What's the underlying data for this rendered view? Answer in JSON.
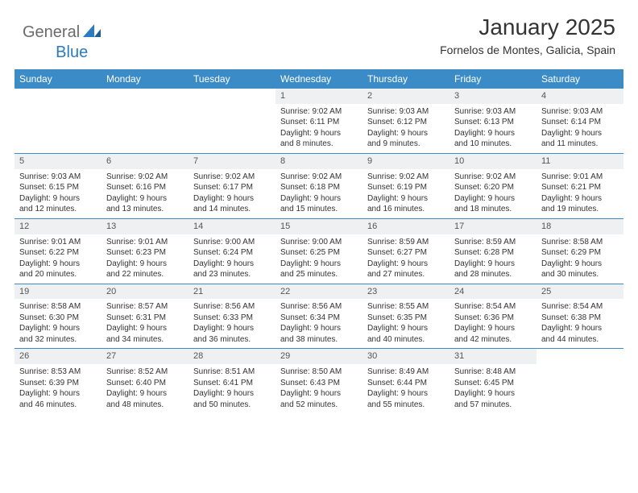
{
  "brand": {
    "part1": "General",
    "part2": "Blue"
  },
  "title": "January 2025",
  "location": "Fornelos de Montes, Galicia, Spain",
  "colors": {
    "header_bg": "#3b8bc7",
    "header_text": "#ffffff",
    "daynum_bg": "#eef0f2",
    "border": "#3b8bc7",
    "brand_gray": "#6b6b6b",
    "brand_blue": "#2a7bbf"
  },
  "weekdays": [
    "Sunday",
    "Monday",
    "Tuesday",
    "Wednesday",
    "Thursday",
    "Friday",
    "Saturday"
  ],
  "weeks": [
    [
      null,
      null,
      null,
      {
        "n": "1",
        "sr": "Sunrise: 9:02 AM",
        "ss": "Sunset: 6:11 PM",
        "d1": "Daylight: 9 hours",
        "d2": "and 8 minutes."
      },
      {
        "n": "2",
        "sr": "Sunrise: 9:03 AM",
        "ss": "Sunset: 6:12 PM",
        "d1": "Daylight: 9 hours",
        "d2": "and 9 minutes."
      },
      {
        "n": "3",
        "sr": "Sunrise: 9:03 AM",
        "ss": "Sunset: 6:13 PM",
        "d1": "Daylight: 9 hours",
        "d2": "and 10 minutes."
      },
      {
        "n": "4",
        "sr": "Sunrise: 9:03 AM",
        "ss": "Sunset: 6:14 PM",
        "d1": "Daylight: 9 hours",
        "d2": "and 11 minutes."
      }
    ],
    [
      {
        "n": "5",
        "sr": "Sunrise: 9:03 AM",
        "ss": "Sunset: 6:15 PM",
        "d1": "Daylight: 9 hours",
        "d2": "and 12 minutes."
      },
      {
        "n": "6",
        "sr": "Sunrise: 9:02 AM",
        "ss": "Sunset: 6:16 PM",
        "d1": "Daylight: 9 hours",
        "d2": "and 13 minutes."
      },
      {
        "n": "7",
        "sr": "Sunrise: 9:02 AM",
        "ss": "Sunset: 6:17 PM",
        "d1": "Daylight: 9 hours",
        "d2": "and 14 minutes."
      },
      {
        "n": "8",
        "sr": "Sunrise: 9:02 AM",
        "ss": "Sunset: 6:18 PM",
        "d1": "Daylight: 9 hours",
        "d2": "and 15 minutes."
      },
      {
        "n": "9",
        "sr": "Sunrise: 9:02 AM",
        "ss": "Sunset: 6:19 PM",
        "d1": "Daylight: 9 hours",
        "d2": "and 16 minutes."
      },
      {
        "n": "10",
        "sr": "Sunrise: 9:02 AM",
        "ss": "Sunset: 6:20 PM",
        "d1": "Daylight: 9 hours",
        "d2": "and 18 minutes."
      },
      {
        "n": "11",
        "sr": "Sunrise: 9:01 AM",
        "ss": "Sunset: 6:21 PM",
        "d1": "Daylight: 9 hours",
        "d2": "and 19 minutes."
      }
    ],
    [
      {
        "n": "12",
        "sr": "Sunrise: 9:01 AM",
        "ss": "Sunset: 6:22 PM",
        "d1": "Daylight: 9 hours",
        "d2": "and 20 minutes."
      },
      {
        "n": "13",
        "sr": "Sunrise: 9:01 AM",
        "ss": "Sunset: 6:23 PM",
        "d1": "Daylight: 9 hours",
        "d2": "and 22 minutes."
      },
      {
        "n": "14",
        "sr": "Sunrise: 9:00 AM",
        "ss": "Sunset: 6:24 PM",
        "d1": "Daylight: 9 hours",
        "d2": "and 23 minutes."
      },
      {
        "n": "15",
        "sr": "Sunrise: 9:00 AM",
        "ss": "Sunset: 6:25 PM",
        "d1": "Daylight: 9 hours",
        "d2": "and 25 minutes."
      },
      {
        "n": "16",
        "sr": "Sunrise: 8:59 AM",
        "ss": "Sunset: 6:27 PM",
        "d1": "Daylight: 9 hours",
        "d2": "and 27 minutes."
      },
      {
        "n": "17",
        "sr": "Sunrise: 8:59 AM",
        "ss": "Sunset: 6:28 PM",
        "d1": "Daylight: 9 hours",
        "d2": "and 28 minutes."
      },
      {
        "n": "18",
        "sr": "Sunrise: 8:58 AM",
        "ss": "Sunset: 6:29 PM",
        "d1": "Daylight: 9 hours",
        "d2": "and 30 minutes."
      }
    ],
    [
      {
        "n": "19",
        "sr": "Sunrise: 8:58 AM",
        "ss": "Sunset: 6:30 PM",
        "d1": "Daylight: 9 hours",
        "d2": "and 32 minutes."
      },
      {
        "n": "20",
        "sr": "Sunrise: 8:57 AM",
        "ss": "Sunset: 6:31 PM",
        "d1": "Daylight: 9 hours",
        "d2": "and 34 minutes."
      },
      {
        "n": "21",
        "sr": "Sunrise: 8:56 AM",
        "ss": "Sunset: 6:33 PM",
        "d1": "Daylight: 9 hours",
        "d2": "and 36 minutes."
      },
      {
        "n": "22",
        "sr": "Sunrise: 8:56 AM",
        "ss": "Sunset: 6:34 PM",
        "d1": "Daylight: 9 hours",
        "d2": "and 38 minutes."
      },
      {
        "n": "23",
        "sr": "Sunrise: 8:55 AM",
        "ss": "Sunset: 6:35 PM",
        "d1": "Daylight: 9 hours",
        "d2": "and 40 minutes."
      },
      {
        "n": "24",
        "sr": "Sunrise: 8:54 AM",
        "ss": "Sunset: 6:36 PM",
        "d1": "Daylight: 9 hours",
        "d2": "and 42 minutes."
      },
      {
        "n": "25",
        "sr": "Sunrise: 8:54 AM",
        "ss": "Sunset: 6:38 PM",
        "d1": "Daylight: 9 hours",
        "d2": "and 44 minutes."
      }
    ],
    [
      {
        "n": "26",
        "sr": "Sunrise: 8:53 AM",
        "ss": "Sunset: 6:39 PM",
        "d1": "Daylight: 9 hours",
        "d2": "and 46 minutes."
      },
      {
        "n": "27",
        "sr": "Sunrise: 8:52 AM",
        "ss": "Sunset: 6:40 PM",
        "d1": "Daylight: 9 hours",
        "d2": "and 48 minutes."
      },
      {
        "n": "28",
        "sr": "Sunrise: 8:51 AM",
        "ss": "Sunset: 6:41 PM",
        "d1": "Daylight: 9 hours",
        "d2": "and 50 minutes."
      },
      {
        "n": "29",
        "sr": "Sunrise: 8:50 AM",
        "ss": "Sunset: 6:43 PM",
        "d1": "Daylight: 9 hours",
        "d2": "and 52 minutes."
      },
      {
        "n": "30",
        "sr": "Sunrise: 8:49 AM",
        "ss": "Sunset: 6:44 PM",
        "d1": "Daylight: 9 hours",
        "d2": "and 55 minutes."
      },
      {
        "n": "31",
        "sr": "Sunrise: 8:48 AM",
        "ss": "Sunset: 6:45 PM",
        "d1": "Daylight: 9 hours",
        "d2": "and 57 minutes."
      },
      null
    ]
  ]
}
